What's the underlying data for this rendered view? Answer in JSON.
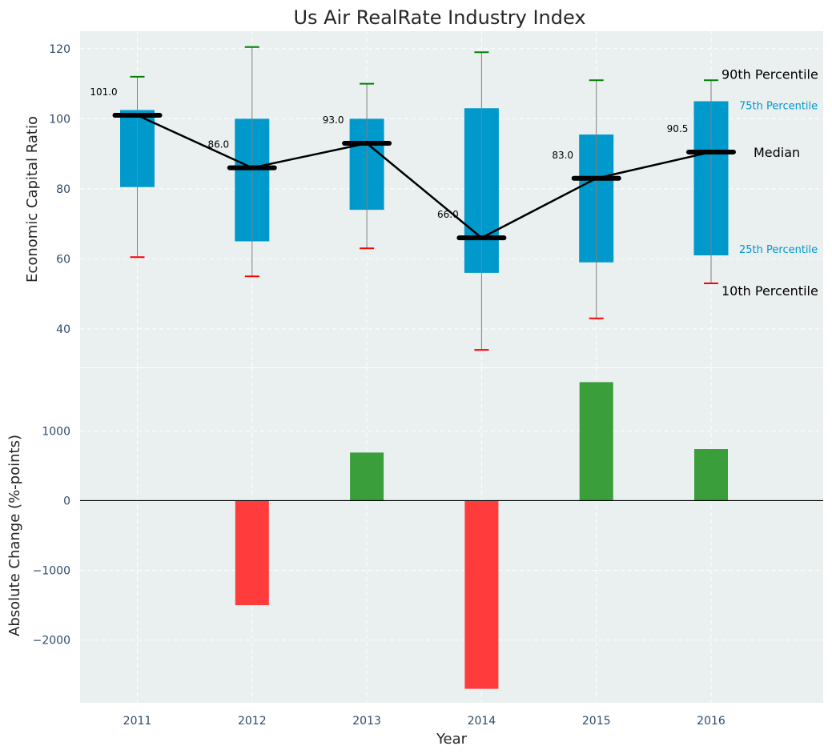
{
  "chart_data": {
    "title": "Us Air RealRate Industry Index",
    "xlabel": "Year",
    "categories": [
      "2011",
      "2012",
      "2013",
      "2014",
      "2015",
      "2016"
    ],
    "top_panel": {
      "type": "box",
      "ylabel": "Economic Capital Ratio",
      "ylim": [
        29,
        125
      ],
      "yticks": [
        40,
        60,
        80,
        100,
        120
      ],
      "grid": true,
      "series": [
        {
          "year": "2011",
          "p10": 60.5,
          "p25": 80.5,
          "median": 101.0,
          "p75": 102.5,
          "p90": 112.0,
          "label": "101.0"
        },
        {
          "year": "2012",
          "p10": 55.0,
          "p25": 65.0,
          "median": 86.0,
          "p75": 100.0,
          "p90": 120.5,
          "label": "86.0"
        },
        {
          "year": "2013",
          "p10": 63.0,
          "p25": 74.0,
          "median": 93.0,
          "p75": 100.0,
          "p90": 110.0,
          "label": "93.0"
        },
        {
          "year": "2014",
          "p10": 34.0,
          "p25": 56.0,
          "median": 66.0,
          "p75": 103.0,
          "p90": 119.0,
          "label": "66.0"
        },
        {
          "year": "2015",
          "p10": 43.0,
          "p25": 59.0,
          "median": 83.0,
          "p75": 95.5,
          "p90": 111.0,
          "label": "83.0"
        },
        {
          "year": "2016",
          "p10": 53.0,
          "p25": 61.0,
          "median": 90.5,
          "p75": 105.0,
          "p90": 111.0,
          "label": "90.5"
        }
      ],
      "legend_annotations": {
        "p90": "90th Percentile",
        "p75": "75th Percentile",
        "median": "Median",
        "p25": "25th Percentile",
        "p10": "10th Percentile"
      }
    },
    "bottom_panel": {
      "type": "bar",
      "ylabel": "Absolute Change (%-points)",
      "ylim": [
        -2900,
        1900
      ],
      "yticks": [
        -2000,
        -1000,
        0,
        1000
      ],
      "ytick_labels": [
        "−2000",
        "−1000",
        "0",
        "1000"
      ],
      "grid": true,
      "values": [
        0,
        -1500,
        690,
        -2700,
        1700,
        740
      ]
    },
    "colors": {
      "background": "#eaeff0",
      "box": "#0099cc",
      "whisker_high": "#008000",
      "whisker_low": "#ff0000",
      "positive": "#3a9e3a",
      "negative": "#ff3b3b",
      "median": "#000000",
      "whisker": "#808080",
      "annotation_blue": "#0099cc"
    }
  }
}
